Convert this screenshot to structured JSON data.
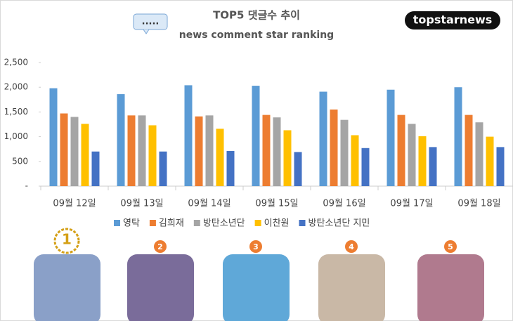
{
  "bubble": ".....",
  "logo": "topstarnews",
  "ranks": [
    "1",
    "2",
    "3",
    "4",
    "5"
  ],
  "chart_data": {
    "type": "bar",
    "title": "TOP5 댓글수 추이",
    "subtitle": "news comment star ranking",
    "categories": [
      "09월 12일",
      "09월 13일",
      "09월 14일",
      "09월 15일",
      "09월 16일",
      "09월 17일",
      "09월 18일"
    ],
    "series": [
      {
        "name": "영탁",
        "color": "#5b9bd5",
        "values": [
          1980,
          1860,
          2040,
          2030,
          1910,
          1950,
          2000
        ]
      },
      {
        "name": "김희재",
        "color": "#ed7d31",
        "values": [
          1470,
          1430,
          1410,
          1440,
          1550,
          1440,
          1440
        ]
      },
      {
        "name": "방탄소년단",
        "color": "#a5a5a5",
        "values": [
          1400,
          1430,
          1430,
          1390,
          1340,
          1260,
          1290
        ]
      },
      {
        "name": "이찬원",
        "color": "#ffc000",
        "values": [
          1260,
          1230,
          1160,
          1130,
          1030,
          1010,
          1000
        ]
      },
      {
        "name": "방탄소년단 지민",
        "color": "#4472c4",
        "values": [
          700,
          700,
          710,
          690,
          770,
          790,
          790
        ]
      }
    ],
    "ylim": [
      0,
      2500
    ],
    "yticks": [
      {
        "value": 0,
        "label": "-"
      },
      500,
      {
        "value": 1000,
        "label": "1,000"
      },
      {
        "value": 1500,
        "label": "1,500"
      },
      {
        "value": 2000,
        "label": "2,000"
      },
      {
        "value": 2500,
        "label": "2,500"
      }
    ],
    "grid": false,
    "legend": "bottom"
  }
}
